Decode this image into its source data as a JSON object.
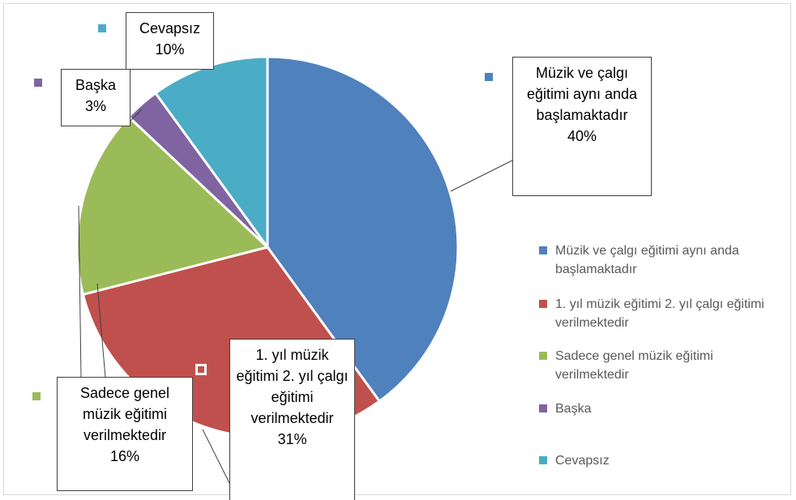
{
  "chart_data": {
    "type": "pie",
    "categories": [
      "Müzik ve çalgı eğitimi aynı anda başlamaktadır",
      "1. yıl müzik eğitimi 2. yıl çalgı eğitimi verilmektedir",
      "Sadece genel müzik eğitimi verilmektedir",
      "Başka",
      "Cevapsız"
    ],
    "values": [
      40,
      31,
      16,
      3,
      10
    ],
    "value_labels": [
      "40%",
      "31%",
      "16%",
      "3%",
      "10%"
    ],
    "colors": [
      "#4f81bd",
      "#c0504d",
      "#9bbb59",
      "#8064a2",
      "#4bacc6"
    ],
    "legend": "right"
  }
}
